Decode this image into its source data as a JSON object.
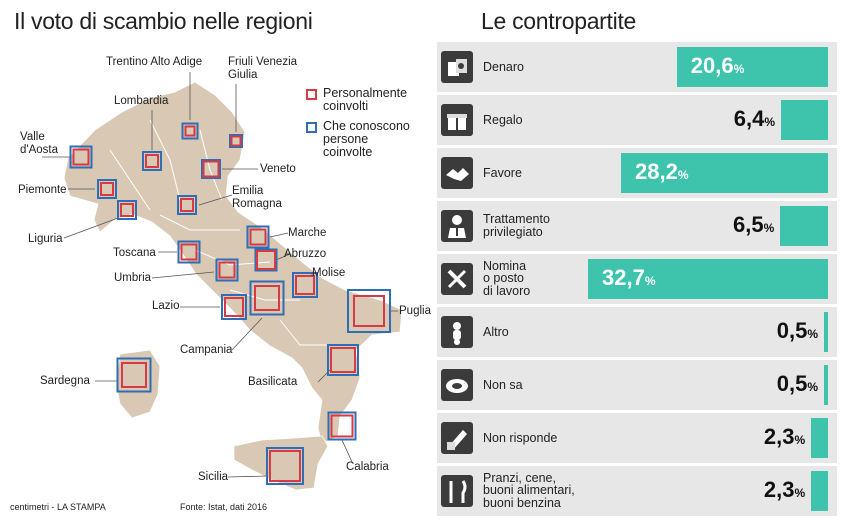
{
  "map_panel": {
    "title": "Il voto di scambio nelle regioni",
    "legend": [
      {
        "label": "Personalmente\ncoinvolti",
        "color": "#d63a45"
      },
      {
        "label": "Che conoscono\npersone\ncoinvolte",
        "color": "#2f6db5"
      }
    ],
    "land_color": "#d8c8b4",
    "regions": [
      {
        "name": "Trentino Alto Adige",
        "personally": 3,
        "know": 5
      },
      {
        "name": "Friuli Venezia\nGiulia",
        "personally": 3,
        "know": 4
      },
      {
        "name": "Lombardia",
        "personally": 4,
        "know": 6
      },
      {
        "name": "Valle\nd'Aosta",
        "personally": 5,
        "know": 7
      },
      {
        "name": "Veneto",
        "personally": 5,
        "know": 6
      },
      {
        "name": "Piemonte",
        "personally": 4,
        "know": 6
      },
      {
        "name": "Emilia\nRomagna",
        "personally": 4,
        "know": 6
      },
      {
        "name": "Liguria",
        "personally": 4,
        "know": 6
      },
      {
        "name": "Marche",
        "personally": 5,
        "know": 7
      },
      {
        "name": "Toscana",
        "personally": 5,
        "know": 7
      },
      {
        "name": "Abruzzo",
        "personally": 6,
        "know": 7
      },
      {
        "name": "Umbria",
        "personally": 5,
        "know": 7
      },
      {
        "name": "Molise",
        "personally": 6,
        "know": 8
      },
      {
        "name": "Lazio",
        "personally": 6,
        "know": 8
      },
      {
        "name": "Puglia",
        "personally": 10,
        "know": 14
      },
      {
        "name": "Campania",
        "personally": 8,
        "know": 11
      },
      {
        "name": "Sardegna",
        "personally": 8,
        "know": 11
      },
      {
        "name": "Basilicata",
        "personally": 8,
        "know": 10
      },
      {
        "name": "Calabria",
        "personally": 7,
        "know": 9
      },
      {
        "name": "Sicilia",
        "personally": 10,
        "know": 12
      }
    ]
  },
  "bars_panel": {
    "title": "Le contropartite",
    "value_suffix": "%",
    "bar_color": "#3ec4ad"
  },
  "chart_data": [
    {
      "type": "bar",
      "title": "Le contropartite",
      "categories": [
        "Denaro",
        "Regalo",
        "Favore",
        "Trattamento\nprivilegiato",
        "Nomina\no posto\ndi lavoro",
        "Altro",
        "Non sa",
        "Non risponde",
        "Pranzi, cene,\nbuoni alimentari,\nbuoni benzina"
      ],
      "values": [
        20.6,
        6.4,
        28.2,
        6.5,
        32.7,
        0.5,
        0.5,
        2.3,
        2.3
      ],
      "value_labels": [
        "20,6",
        "6,4",
        "28,2",
        "6,5",
        "32,7",
        "0,5",
        "0,5",
        "2,3",
        "2,3"
      ],
      "icons": [
        "money-icon",
        "gift-icon",
        "handshake-icon",
        "person-icon",
        "tools-icon",
        "scooter-icon",
        "cloud-icon",
        "pen-icon",
        "fork-knife-icon"
      ],
      "orientation": "horizontal, bars grow leftward from right edge",
      "xlim": [
        0,
        32.7
      ]
    }
  ],
  "footer": {
    "credit": "centimetri - LA STAMPA",
    "source": "Fonte: Istat, dati 2016"
  }
}
